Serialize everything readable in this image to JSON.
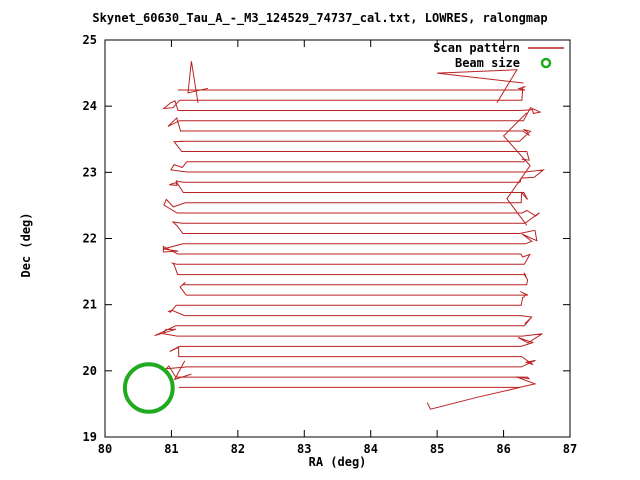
{
  "title": "Skynet_60630_Tau_A_-_M3_124529_74737_cal.txt, LOWRES, ralongmap",
  "chart_data": {
    "type": "line",
    "title": "Skynet_60630_Tau_A_-_M3_124529_74737_cal.txt, LOWRES, ralongmap",
    "xlabel": "RA (deg)",
    "ylabel": "Dec (deg)",
    "xlim": [
      80,
      87
    ],
    "ylim": [
      19,
      25
    ],
    "x_ticks": [
      80,
      81,
      82,
      83,
      84,
      85,
      86,
      87
    ],
    "y_ticks": [
      19,
      20,
      21,
      22,
      23,
      24,
      25
    ],
    "grid": false,
    "legend_position": "top-right-inside",
    "legend": [
      {
        "label": "Scan pattern",
        "color": "#bb2222",
        "marker": "line"
      },
      {
        "label": "Beam size",
        "color": "#1faa1f",
        "marker": "circle"
      }
    ],
    "scan_pattern": {
      "description": "Boustrophedon raster scan: ~30 constant-Dec sweeps with jittered zig-zag turnarounds at both RA ends",
      "ra_min": 81.15,
      "ra_max": 86.3,
      "dec_start": 19.75,
      "dec_step": 0.155,
      "num_lines": 30,
      "turn_jitter_ra": 0.3,
      "color": "#bb2222",
      "seed": 12
    },
    "spike_features": [
      [
        [
          81.4,
          24.05
        ],
        [
          81.3,
          24.68
        ],
        [
          81.25,
          24.2
        ],
        [
          81.55,
          24.27
        ]
      ],
      [
        [
          86.25,
          19.75
        ],
        [
          85.6,
          19.6
        ],
        [
          84.9,
          19.42
        ],
        [
          84.85,
          19.52
        ]
      ],
      [
        [
          86.3,
          24.35
        ],
        [
          85.0,
          24.5
        ],
        [
          86.2,
          24.55
        ],
        [
          85.9,
          24.05
        ]
      ],
      [
        [
          86.35,
          23.9
        ],
        [
          86.0,
          23.55
        ],
        [
          86.4,
          23.1
        ],
        [
          86.05,
          22.6
        ],
        [
          86.35,
          22.2
        ]
      ],
      [
        [
          81.2,
          20.15
        ],
        [
          81.05,
          19.87
        ],
        [
          81.3,
          19.95
        ]
      ]
    ],
    "beam": {
      "ra": 80.66,
      "dec": 19.74,
      "radius_deg": 0.36,
      "color": "#1faa1f"
    }
  }
}
